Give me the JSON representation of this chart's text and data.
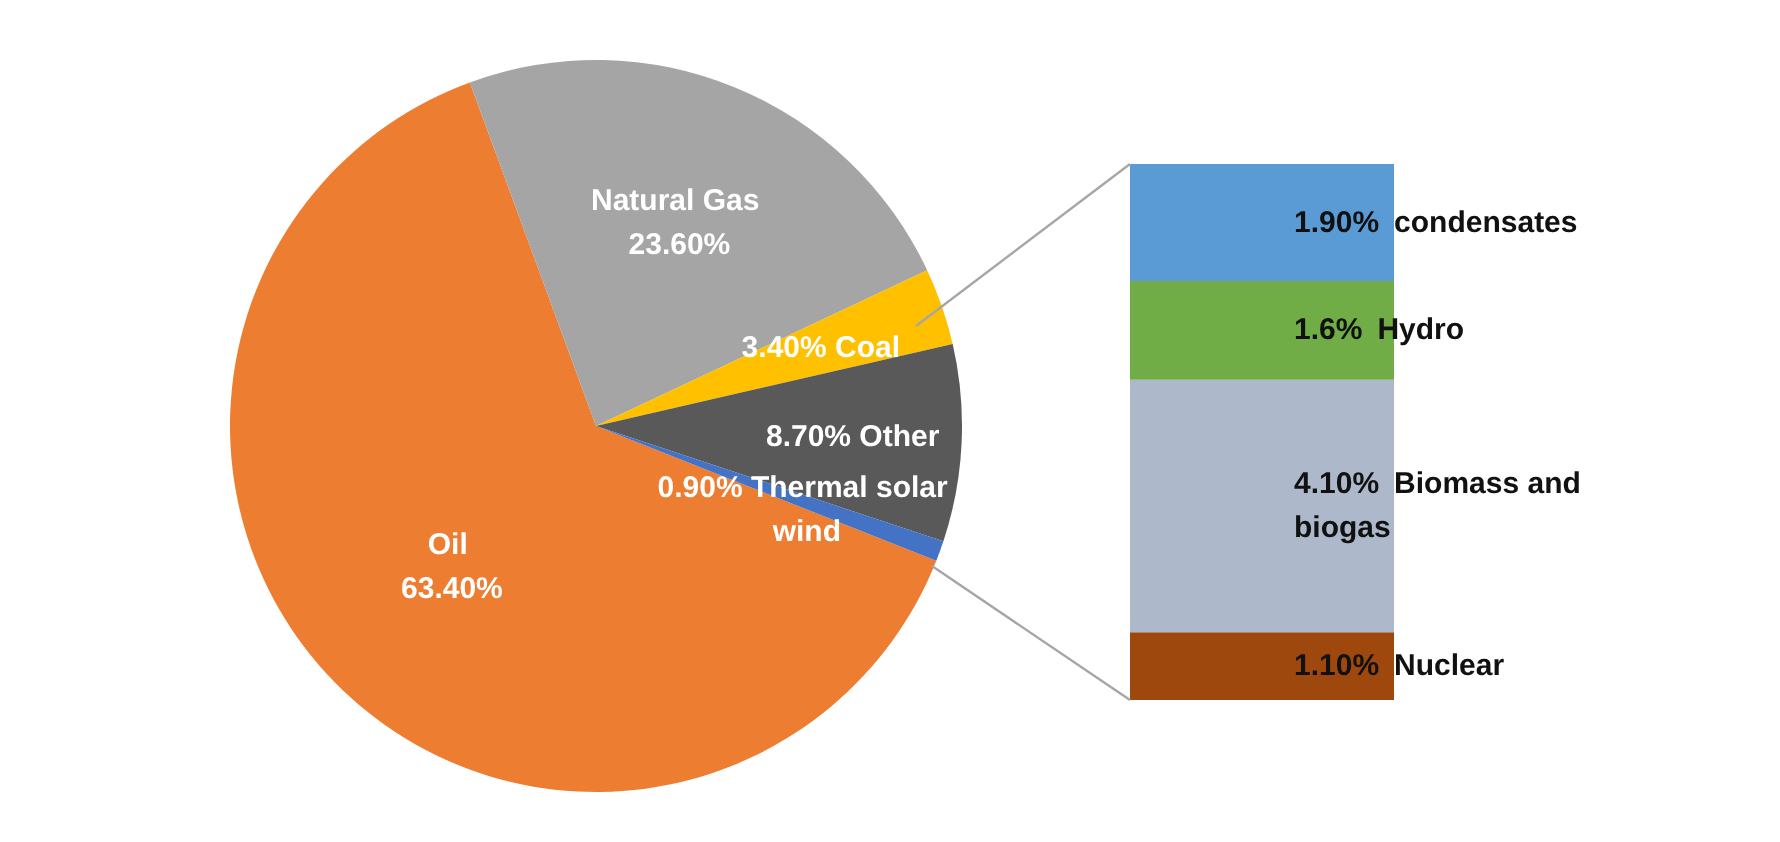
{
  "chart_data": [
    {
      "type": "pie",
      "categories": [
        "Oil",
        "Natural Gas",
        "Coal",
        "Other",
        "Thermal solar wind"
      ],
      "values": [
        63.4,
        23.6,
        3.4,
        8.7,
        0.9
      ],
      "colors": [
        "#ed7d31",
        "#a5a5a5",
        "#ffc000",
        "#595959",
        "#4472c4"
      ],
      "value_labels": [
        "63.40%",
        "23.60%",
        "3.40%",
        "8.70%",
        "0.90%"
      ],
      "legend": false
    },
    {
      "type": "bar",
      "stacked": true,
      "categories": [
        null
      ],
      "series": [
        {
          "name": "Nuclear",
          "color": "#9e480e",
          "values": [
            1.1
          ],
          "value_labels": [
            "1.10%"
          ]
        },
        {
          "name": "Biomass and biogas",
          "color": "#adb9ca",
          "values": [
            4.1
          ],
          "value_labels": [
            "4.10%"
          ]
        },
        {
          "name": "Hydro",
          "color": "#70ad47",
          "values": [
            1.6
          ],
          "value_labels": [
            "1.6%"
          ]
        },
        {
          "name": "condensates",
          "color": "#5b9bd5",
          "values": [
            1.9
          ],
          "value_labels": [
            "1.90%"
          ]
        }
      ],
      "legend": false
    }
  ]
}
